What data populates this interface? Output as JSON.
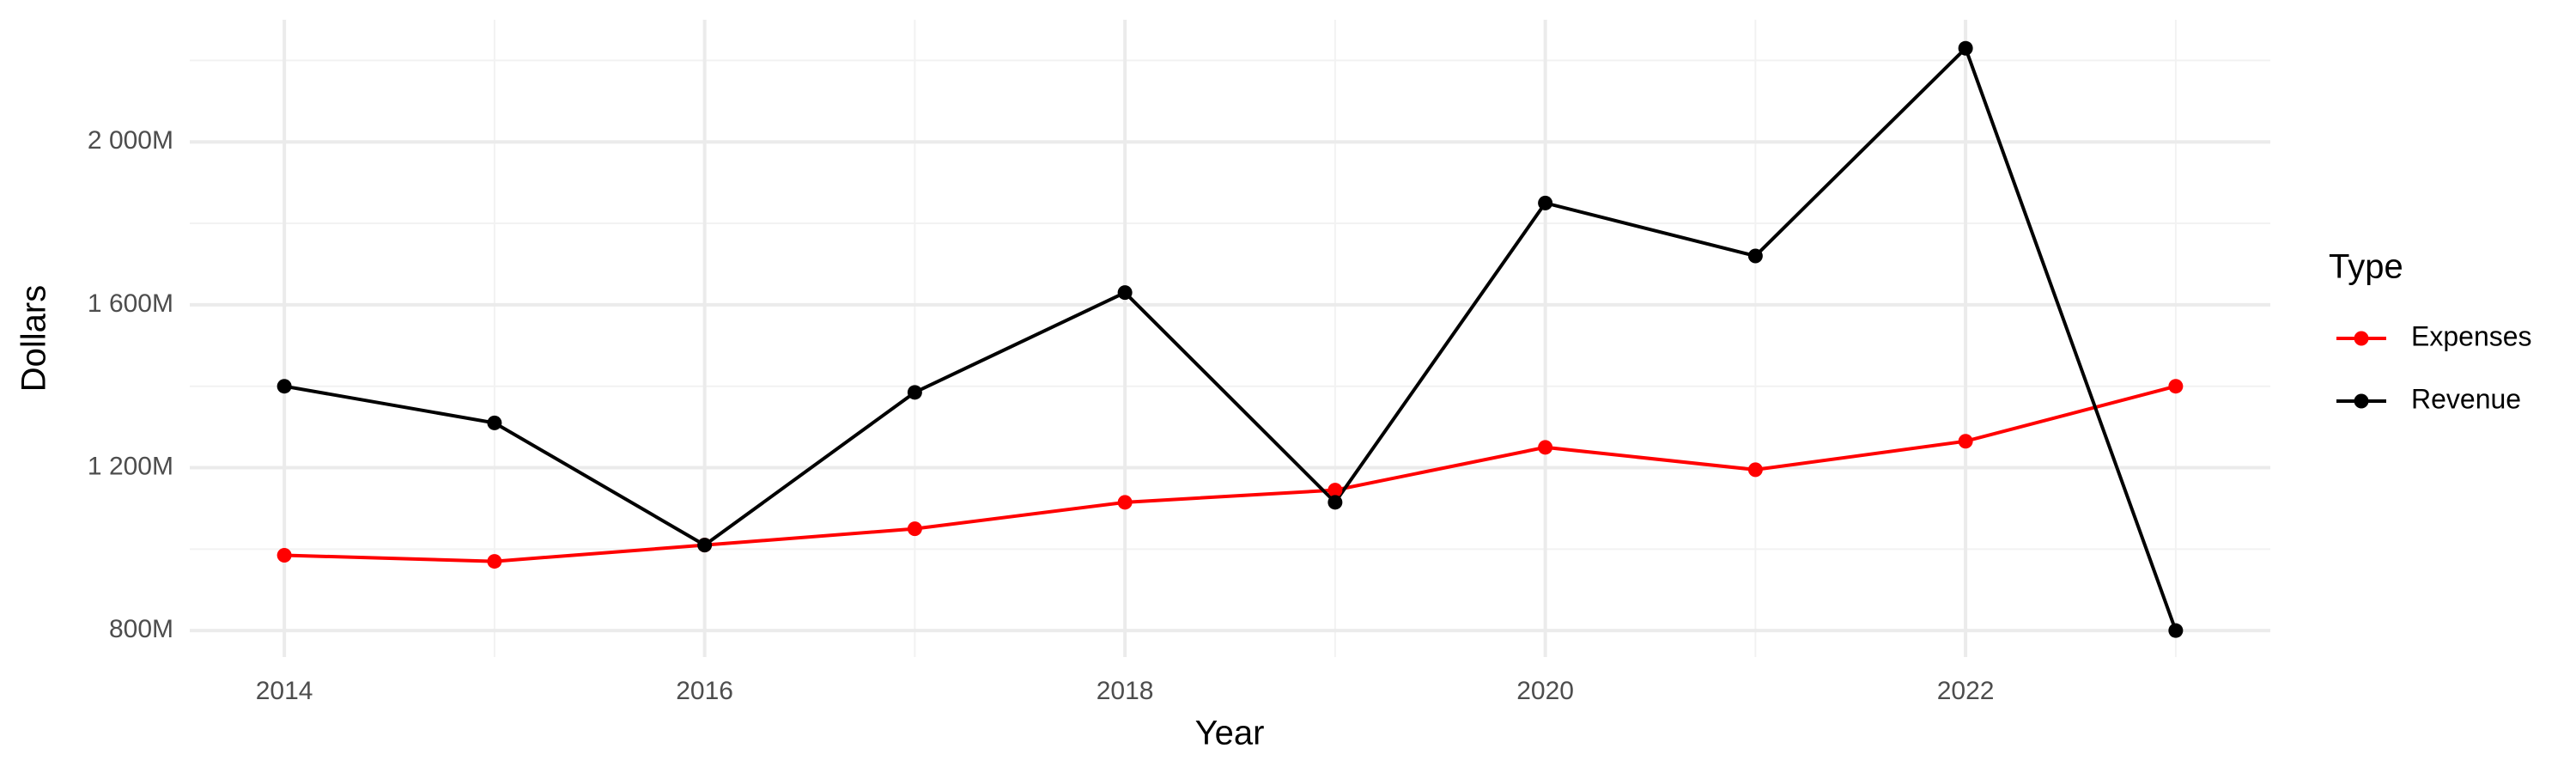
{
  "chart_data": {
    "type": "line",
    "x_label": "Year",
    "y_label": "Dollars",
    "legend_title": "Type",
    "legend": "right",
    "grid": true,
    "x": [
      2014,
      2015,
      2016,
      2017,
      2018,
      2019,
      2020,
      2021,
      2022,
      2023
    ],
    "series": [
      {
        "name": "Expenses",
        "color": "#ff0000",
        "values": [
          985000000,
          970000000,
          1010000000,
          1050000000,
          1115000000,
          1145000000,
          1250000000,
          1195000000,
          1265000000,
          1400000000
        ]
      },
      {
        "name": "Revenue",
        "color": "#000000",
        "values": [
          1400000000,
          1310000000,
          1010000000,
          1385000000,
          1630000000,
          1115000000,
          1850000000,
          1720000000,
          2230000000,
          800000000
        ]
      }
    ],
    "xlim": [
      2013.55,
      2023.45
    ],
    "xticks": [
      2014,
      2016,
      2018,
      2020,
      2022
    ],
    "ylim": [
      735000000,
      2300000000
    ],
    "yticks": [
      {
        "value": 800000000,
        "label": "800M"
      },
      {
        "value": 1200000000,
        "label": "1 200M"
      },
      {
        "value": 1600000000,
        "label": "1 600M"
      },
      {
        "value": 2000000000,
        "label": "2 000M"
      }
    ]
  }
}
